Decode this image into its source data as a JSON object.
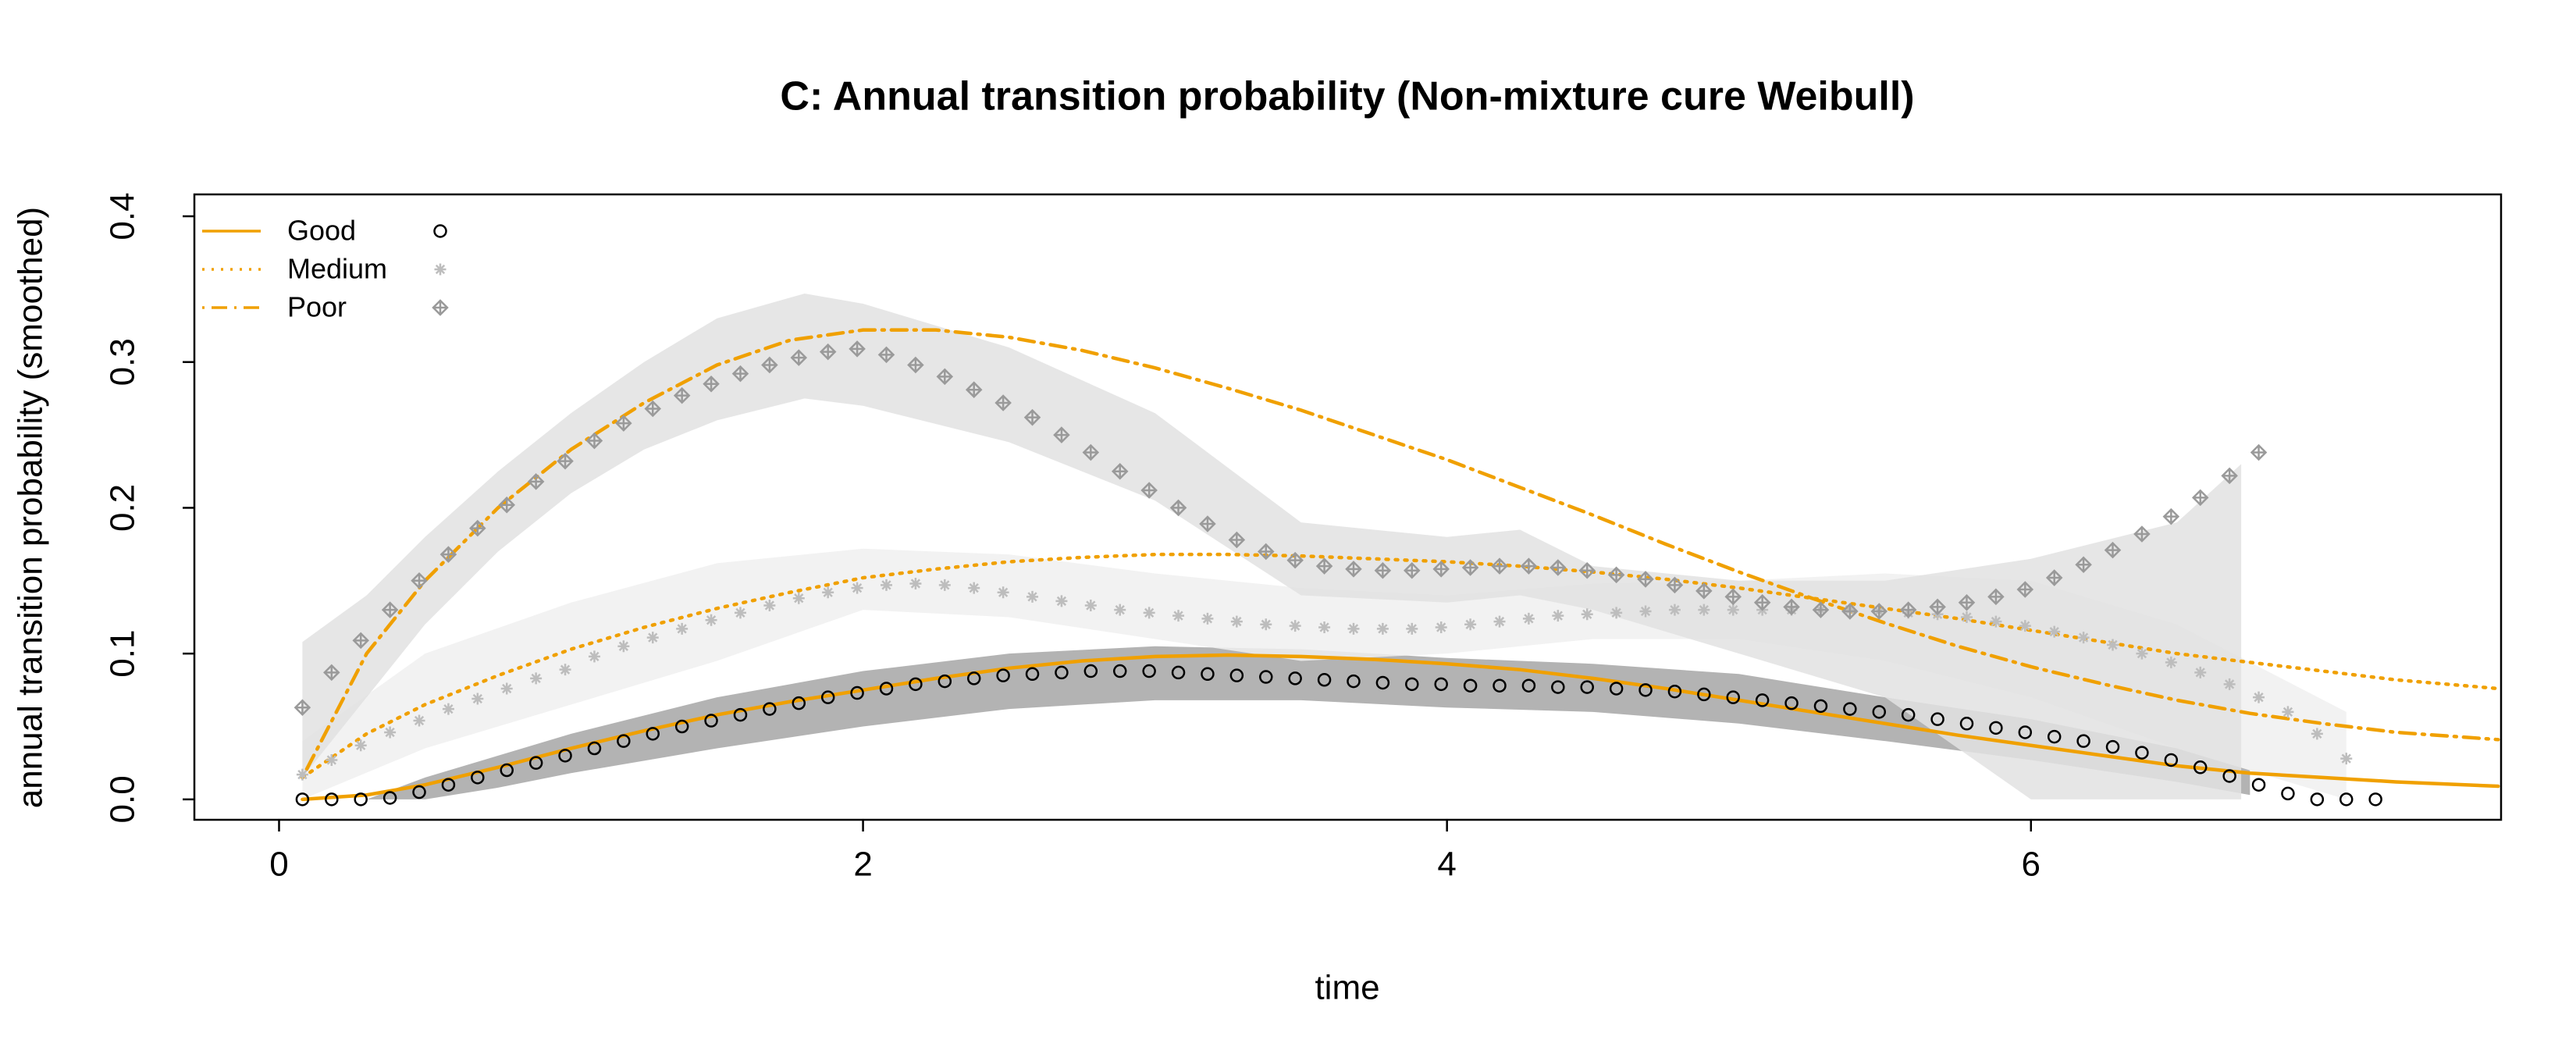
{
  "chart_data": {
    "type": "line",
    "title": "C: Annual transition probability (Non-mixture cure Weibull)",
    "x_label": "time",
    "y_label": "annual transition probability (smoothed)",
    "xlim": [
      -0.29,
      7.61
    ],
    "ylim": [
      -0.014,
      0.415
    ],
    "xticks": [
      0,
      2,
      4,
      6
    ],
    "yticks": [
      {
        "value": 0,
        "label": "0.0"
      },
      {
        "value": 0.1,
        "label": "0.1"
      },
      {
        "value": 0.2,
        "label": "0.2"
      },
      {
        "value": 0.3,
        "label": "0.3"
      },
      {
        "value": 0.4,
        "label": "0.4"
      }
    ],
    "legend": "top-left",
    "series": [
      {
        "name": "Good",
        "color": "#f0a000",
        "linestyle": "solid",
        "marker": "circle",
        "marker_color": "#000000",
        "band_color": "#a6a6a6",
        "curve": {
          "x": [
            0.08,
            0.3,
            0.5,
            0.75,
            1,
            1.25,
            1.5,
            1.75,
            2,
            2.25,
            2.5,
            2.75,
            3,
            3.25,
            3.5,
            3.75,
            4,
            4.25,
            4.5,
            4.75,
            5,
            5.25,
            5.5,
            5.75,
            6,
            6.25,
            6.5,
            6.75,
            7,
            7.25,
            7.6
          ],
          "values": [
            0,
            0.003,
            0.01,
            0.022,
            0.035,
            0.047,
            0.058,
            0.067,
            0.075,
            0.083,
            0.09,
            0.095,
            0.098,
            0.099,
            0.098,
            0.096,
            0.093,
            0.089,
            0.083,
            0.076,
            0.068,
            0.06,
            0.052,
            0.044,
            0.037,
            0.03,
            0.023,
            0.018,
            0.015,
            0.012,
            0.009
          ]
        },
        "points": {
          "x": [
            0.08,
            0.18,
            0.28,
            0.38,
            0.48,
            0.58,
            0.68,
            0.78,
            0.88,
            0.98,
            1.08,
            1.18,
            1.28,
            1.38,
            1.48,
            1.58,
            1.68,
            1.78,
            1.88,
            1.98,
            2.08,
            2.18,
            2.28,
            2.38,
            2.48,
            2.58,
            2.68,
            2.78,
            2.88,
            2.98,
            3.08,
            3.18,
            3.28,
            3.38,
            3.48,
            3.58,
            3.68,
            3.78,
            3.88,
            3.98,
            4.08,
            4.18,
            4.28,
            4.38,
            4.48,
            4.58,
            4.68,
            4.78,
            4.88,
            4.98,
            5.08,
            5.18,
            5.28,
            5.38,
            5.48,
            5.58,
            5.68,
            5.78,
            5.88,
            5.98,
            6.08,
            6.18,
            6.28,
            6.38,
            6.48,
            6.58,
            6.68,
            6.78,
            6.88,
            6.98,
            7.08,
            7.18
          ],
          "values": [
            0,
            0,
            0,
            0.001,
            0.005,
            0.01,
            0.015,
            0.02,
            0.025,
            0.03,
            0.035,
            0.04,
            0.045,
            0.05,
            0.054,
            0.058,
            0.062,
            0.066,
            0.07,
            0.073,
            0.076,
            0.079,
            0.081,
            0.083,
            0.085,
            0.086,
            0.087,
            0.088,
            0.088,
            0.088,
            0.087,
            0.086,
            0.085,
            0.084,
            0.083,
            0.082,
            0.081,
            0.08,
            0.079,
            0.079,
            0.078,
            0.078,
            0.078,
            0.077,
            0.077,
            0.076,
            0.075,
            0.074,
            0.072,
            0.07,
            0.068,
            0.066,
            0.064,
            0.062,
            0.06,
            0.058,
            0.055,
            0.052,
            0.049,
            0.046,
            0.043,
            0.04,
            0.036,
            0.032,
            0.027,
            0.022,
            0.016,
            0.01,
            0.004,
            0,
            0,
            0
          ]
        },
        "band": {
          "x": [
            0.3,
            0.5,
            0.75,
            1,
            1.5,
            2,
            2.5,
            3,
            3.5,
            4,
            4.5,
            5,
            5.5,
            6,
            6.5,
            6.75
          ],
          "lower": [
            0,
            0,
            0.008,
            0.018,
            0.035,
            0.05,
            0.062,
            0.068,
            0.068,
            0.063,
            0.06,
            0.052,
            0.04,
            0.027,
            0.012,
            0.003
          ],
          "upper": [
            0,
            0.015,
            0.03,
            0.045,
            0.07,
            0.088,
            0.1,
            0.105,
            0.103,
            0.097,
            0.093,
            0.086,
            0.07,
            0.055,
            0.035,
            0.02
          ]
        }
      },
      {
        "name": "Medium",
        "color": "#f0a000",
        "linestyle": "dotted",
        "marker": "asterisk",
        "marker_color": "#bdbdbd",
        "band_color": "#f0f0f0",
        "curve": {
          "x": [
            0.08,
            0.3,
            0.5,
            0.75,
            1,
            1.25,
            1.5,
            1.75,
            2,
            2.25,
            2.5,
            2.75,
            3,
            3.25,
            3.5,
            3.75,
            4,
            4.25,
            4.5,
            4.75,
            5,
            5.25,
            5.5,
            5.75,
            6,
            6.25,
            6.5,
            6.75,
            7,
            7.25,
            7.6
          ],
          "values": [
            0.015,
            0.045,
            0.065,
            0.085,
            0.103,
            0.118,
            0.131,
            0.142,
            0.152,
            0.158,
            0.163,
            0.166,
            0.168,
            0.168,
            0.167,
            0.165,
            0.163,
            0.16,
            0.156,
            0.151,
            0.145,
            0.138,
            0.131,
            0.124,
            0.116,
            0.108,
            0.1,
            0.094,
            0.088,
            0.082,
            0.076
          ]
        },
        "points": {
          "x": [
            0.08,
            0.18,
            0.28,
            0.38,
            0.48,
            0.58,
            0.68,
            0.78,
            0.88,
            0.98,
            1.08,
            1.18,
            1.28,
            1.38,
            1.48,
            1.58,
            1.68,
            1.78,
            1.88,
            1.98,
            2.08,
            2.18,
            2.28,
            2.38,
            2.48,
            2.58,
            2.68,
            2.78,
            2.88,
            2.98,
            3.08,
            3.18,
            3.28,
            3.38,
            3.48,
            3.58,
            3.68,
            3.78,
            3.88,
            3.98,
            4.08,
            4.18,
            4.28,
            4.38,
            4.48,
            4.58,
            4.68,
            4.78,
            4.88,
            4.98,
            5.08,
            5.18,
            5.28,
            5.38,
            5.48,
            5.58,
            5.68,
            5.78,
            5.88,
            5.98,
            6.08,
            6.18,
            6.28,
            6.38,
            6.48,
            6.58,
            6.68,
            6.78,
            6.88,
            6.98,
            7.08
          ],
          "values": [
            0.017,
            0.027,
            0.037,
            0.046,
            0.054,
            0.062,
            0.069,
            0.076,
            0.083,
            0.089,
            0.098,
            0.105,
            0.111,
            0.117,
            0.123,
            0.128,
            0.133,
            0.138,
            0.142,
            0.145,
            0.147,
            0.148,
            0.147,
            0.145,
            0.142,
            0.139,
            0.136,
            0.133,
            0.13,
            0.128,
            0.126,
            0.124,
            0.122,
            0.12,
            0.119,
            0.118,
            0.117,
            0.117,
            0.117,
            0.118,
            0.12,
            0.122,
            0.124,
            0.126,
            0.127,
            0.128,
            0.129,
            0.13,
            0.13,
            0.13,
            0.13,
            0.13,
            0.13,
            0.13,
            0.129,
            0.128,
            0.127,
            0.125,
            0.122,
            0.119,
            0.115,
            0.111,
            0.106,
            0.1,
            0.094,
            0.087,
            0.079,
            0.07,
            0.06,
            0.045,
            0.028
          ]
        },
        "band": {
          "x": [
            0.08,
            0.5,
            1,
            1.5,
            2,
            2.5,
            3,
            3.5,
            4,
            4.5,
            5,
            5.5,
            6,
            6.5,
            7.08
          ],
          "lower": [
            0,
            0.035,
            0.065,
            0.095,
            0.13,
            0.125,
            0.11,
            0.095,
            0.1,
            0.11,
            0.11,
            0.095,
            0.07,
            0.035,
            0
          ],
          "upper": [
            0.04,
            0.1,
            0.135,
            0.162,
            0.172,
            0.168,
            0.155,
            0.145,
            0.14,
            0.148,
            0.15,
            0.155,
            0.15,
            0.12,
            0.06
          ]
        }
      },
      {
        "name": "Poor",
        "color": "#f0a000",
        "linestyle": "dotdash",
        "marker": "diamond-plus",
        "marker_color": "#9a9a9a",
        "band_color": "#e2e2e2",
        "curve": {
          "x": [
            0.08,
            0.3,
            0.5,
            0.75,
            1,
            1.25,
            1.5,
            1.75,
            2,
            2.25,
            2.5,
            2.75,
            3,
            3.25,
            3.5,
            3.75,
            4,
            4.25,
            4.5,
            4.75,
            5,
            5.25,
            5.5,
            5.75,
            6,
            6.25,
            6.5,
            6.75,
            7,
            7.25,
            7.6
          ],
          "values": [
            0.015,
            0.1,
            0.15,
            0.2,
            0.24,
            0.272,
            0.298,
            0.315,
            0.322,
            0.322,
            0.317,
            0.308,
            0.296,
            0.282,
            0.267,
            0.25,
            0.233,
            0.214,
            0.195,
            0.175,
            0.156,
            0.138,
            0.121,
            0.105,
            0.091,
            0.079,
            0.068,
            0.059,
            0.052,
            0.046,
            0.041
          ]
        },
        "points": {
          "x": [
            0.08,
            0.18,
            0.28,
            0.38,
            0.48,
            0.58,
            0.68,
            0.78,
            0.88,
            0.98,
            1.08,
            1.18,
            1.28,
            1.38,
            1.48,
            1.58,
            1.68,
            1.78,
            1.88,
            1.98,
            2.08,
            2.18,
            2.28,
            2.38,
            2.48,
            2.58,
            2.68,
            2.78,
            2.88,
            2.98,
            3.08,
            3.18,
            3.28,
            3.38,
            3.48,
            3.58,
            3.68,
            3.78,
            3.88,
            3.98,
            4.08,
            4.18,
            4.28,
            4.38,
            4.48,
            4.58,
            4.68,
            4.78,
            4.88,
            4.98,
            5.08,
            5.18,
            5.28,
            5.38,
            5.48,
            5.58,
            5.68,
            5.78,
            5.88,
            5.98,
            6.08,
            6.18,
            6.28,
            6.38,
            6.48,
            6.58,
            6.68,
            6.78
          ],
          "values": [
            0.063,
            0.087,
            0.109,
            0.13,
            0.15,
            0.168,
            0.186,
            0.202,
            0.218,
            0.232,
            0.246,
            0.258,
            0.268,
            0.277,
            0.285,
            0.292,
            0.298,
            0.303,
            0.307,
            0.309,
            0.305,
            0.298,
            0.29,
            0.281,
            0.272,
            0.262,
            0.25,
            0.238,
            0.225,
            0.212,
            0.2,
            0.189,
            0.178,
            0.17,
            0.164,
            0.16,
            0.158,
            0.157,
            0.157,
            0.158,
            0.159,
            0.16,
            0.16,
            0.159,
            0.157,
            0.154,
            0.151,
            0.147,
            0.143,
            0.139,
            0.135,
            0.132,
            0.13,
            0.129,
            0.129,
            0.13,
            0.132,
            0.135,
            0.139,
            0.144,
            0.152,
            0.161,
            0.171,
            0.182,
            0.194,
            0.207,
            0.222,
            0.238
          ]
        },
        "band": {
          "x": [
            0.08,
            0.3,
            0.5,
            0.75,
            1,
            1.25,
            1.5,
            1.8,
            2,
            2.5,
            3,
            3.5,
            4,
            4.25,
            4.5,
            5,
            5.5,
            6,
            6.5,
            6.72
          ],
          "lower": [
            0.015,
            0.07,
            0.12,
            0.17,
            0.21,
            0.24,
            0.26,
            0.275,
            0.27,
            0.245,
            0.205,
            0.14,
            0.135,
            0.14,
            0.13,
            0.1,
            0.07,
            0,
            0,
            0
          ],
          "upper": [
            0.108,
            0.14,
            0.18,
            0.225,
            0.265,
            0.3,
            0.33,
            0.347,
            0.34,
            0.31,
            0.265,
            0.19,
            0.18,
            0.185,
            0.16,
            0.15,
            0.15,
            0.165,
            0.19,
            0.23
          ]
        }
      }
    ]
  }
}
